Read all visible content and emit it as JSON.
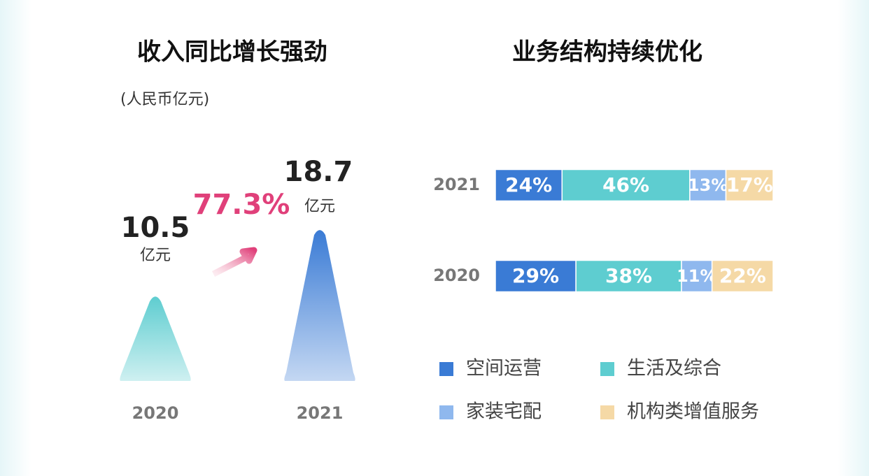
{
  "chart_data": [
    {
      "type": "bar",
      "title": "收入同比增长强劲",
      "subtitle": "(人民币亿元)",
      "categories": [
        "2020",
        "2021"
      ],
      "values": [
        10.5,
        18.7
      ],
      "value_unit": "亿元",
      "colors": [
        "#5ecdd0",
        "#3a7bd5"
      ],
      "annotation": "77.3%"
    },
    {
      "type": "bar",
      "orientation": "horizontal",
      "stacked": true,
      "title": "业务结构持续优化",
      "categories": [
        "2021",
        "2020"
      ],
      "series": [
        {
          "name": "空间运营",
          "color": "#3a7bd5",
          "values": [
            24,
            29
          ],
          "value_labels": [
            "24%",
            "29%"
          ]
        },
        {
          "name": "生活及综合",
          "color": "#5ecdd0",
          "values": [
            46,
            38
          ],
          "value_labels": [
            "46%",
            "38%"
          ]
        },
        {
          "name": "家装宅配",
          "color": "#8fb8ee",
          "values": [
            13,
            11
          ],
          "value_labels": [
            "13%",
            "11%"
          ]
        },
        {
          "name": "机构类增值服务",
          "color": "#f5d9a6",
          "values": [
            17,
            22
          ],
          "value_labels": [
            "17%",
            "22%"
          ]
        }
      ]
    }
  ]
}
